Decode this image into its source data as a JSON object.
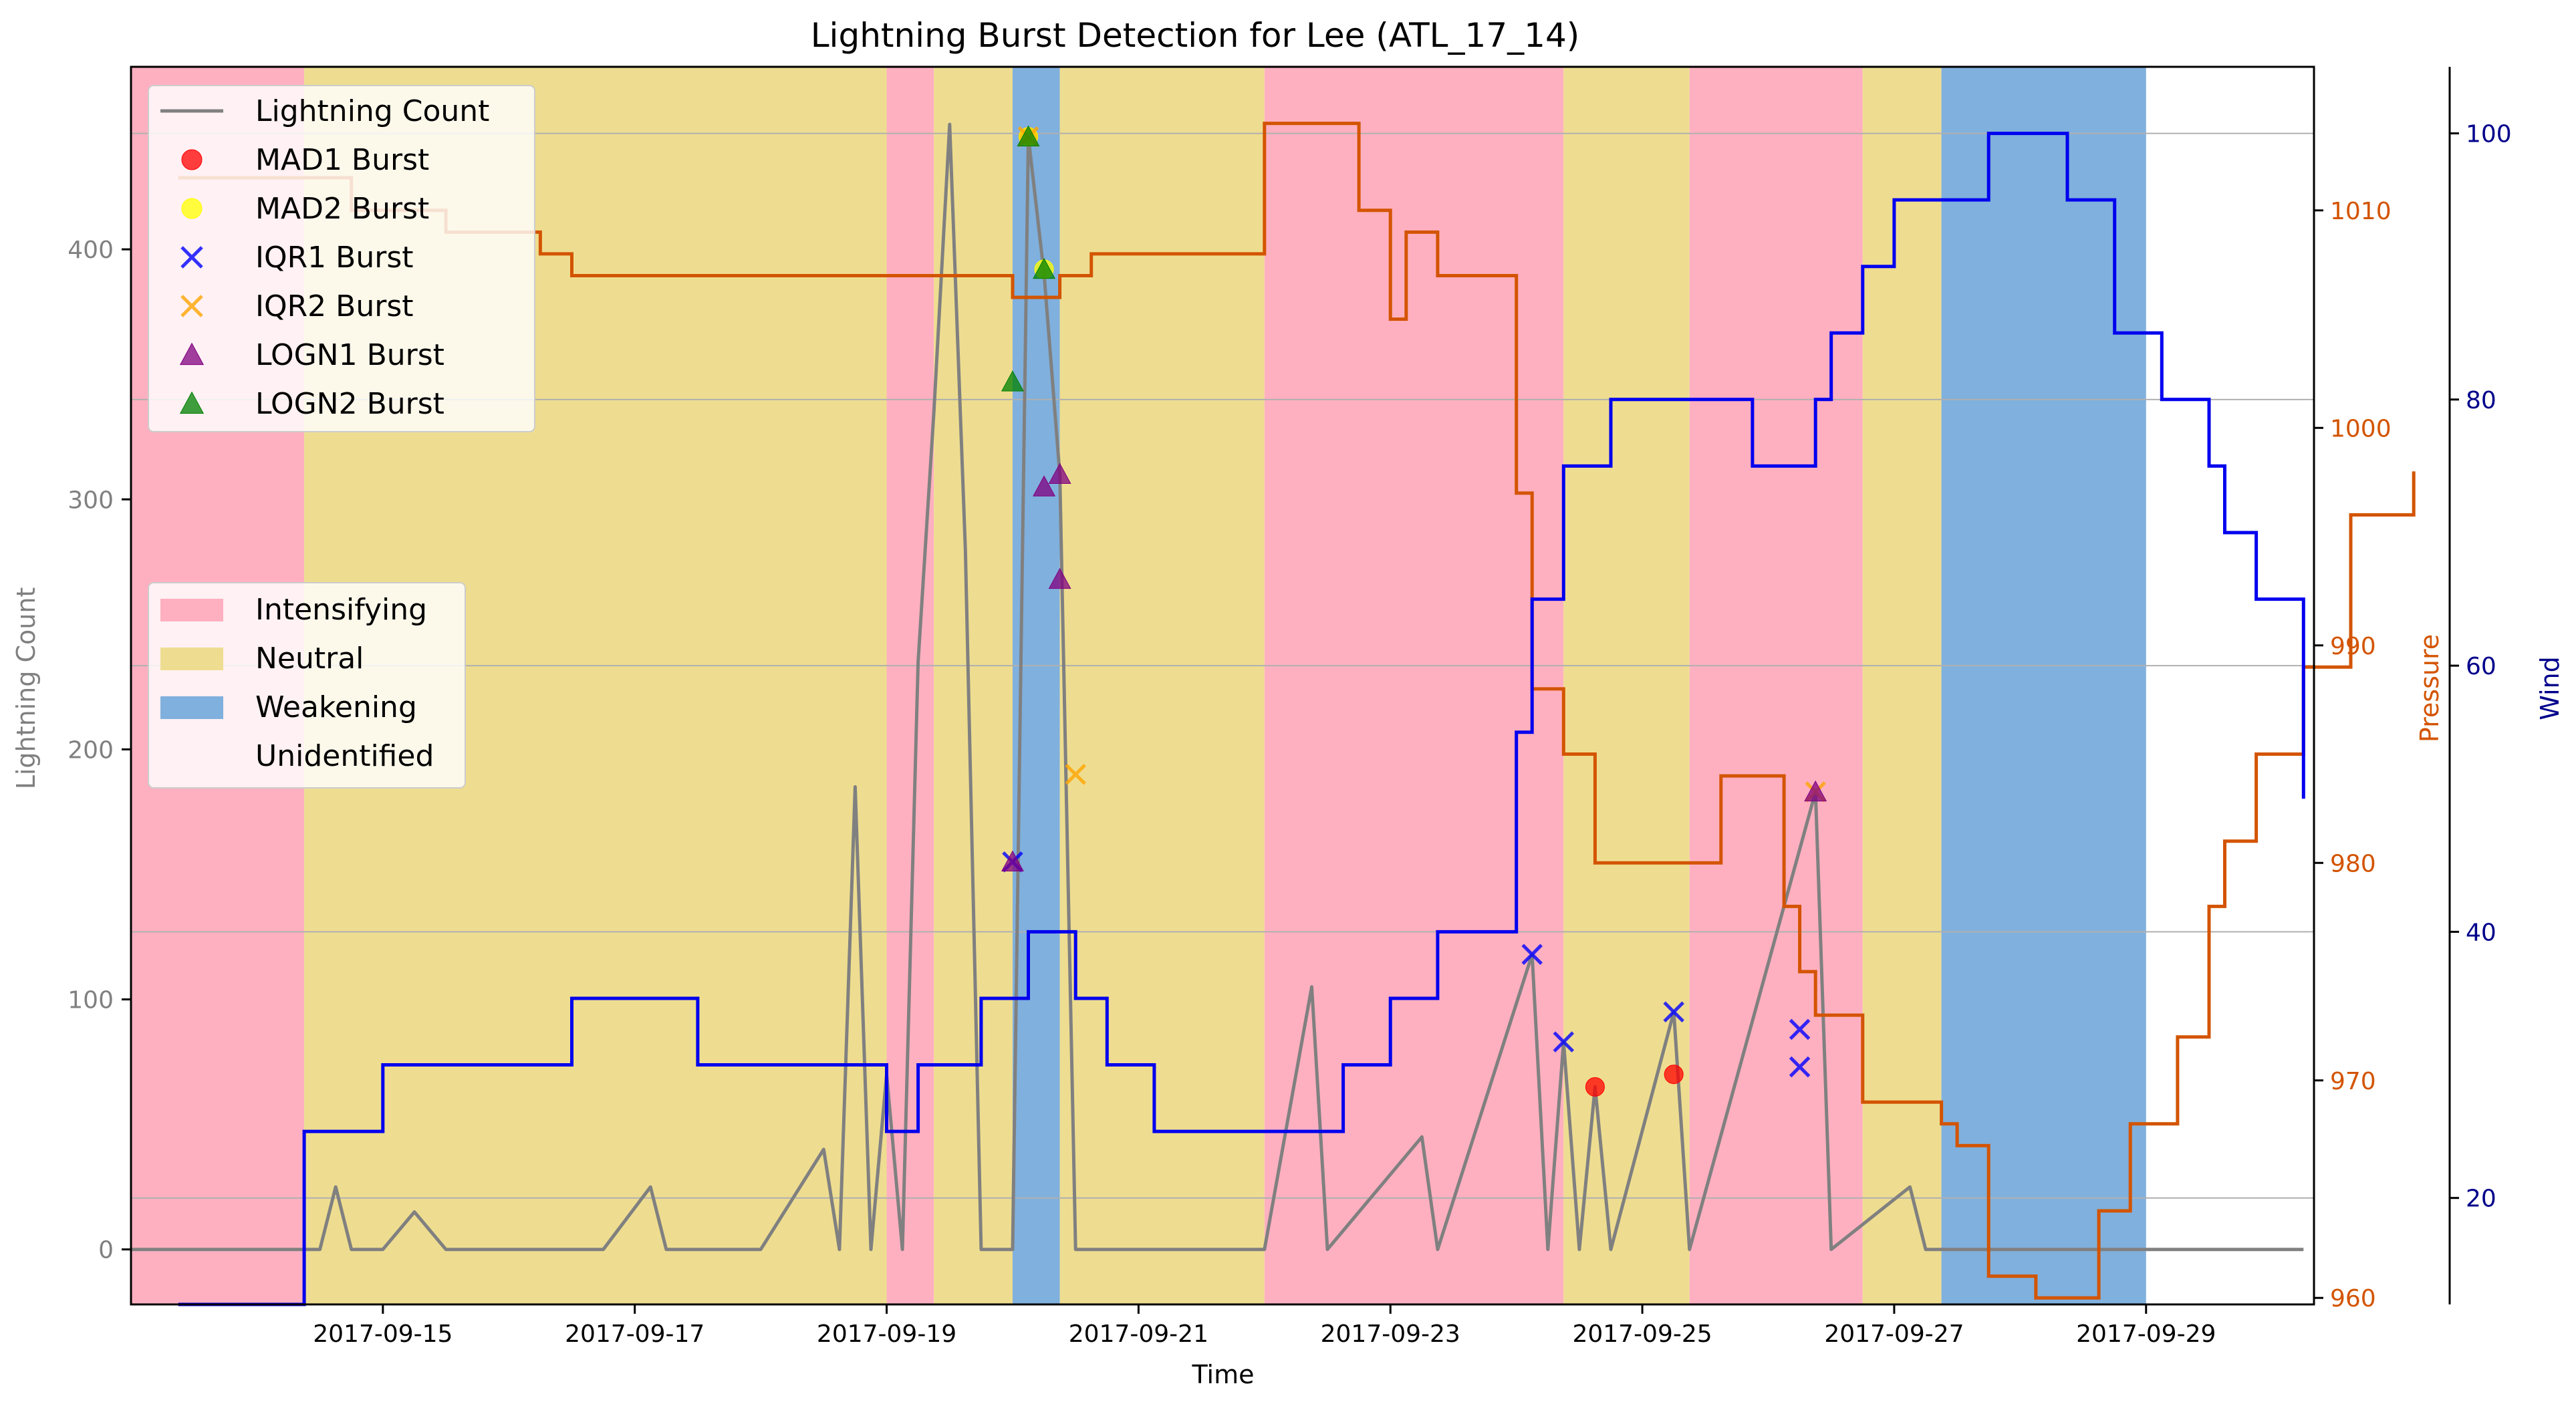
{
  "chart_data": {
    "type": "line",
    "title": "Lightning Burst Detection for Lee (ATL_17_14)",
    "xlabel": "Time",
    "ylabel": "Lightning Count",
    "ylabel_pressure": "Pressure",
    "ylabel_wind": "Wind",
    "x_range": [
      "2017-09-13 00:00",
      "2017-09-30 08:00"
    ],
    "ylim": [
      -22,
      473
    ],
    "ylim_pressure": [
      959.7,
      1016.6
    ],
    "ylim_wind": [
      12,
      105
    ],
    "x_ticks": [
      "2017-09-15",
      "2017-09-17",
      "2017-09-19",
      "2017-09-21",
      "2017-09-23",
      "2017-09-25",
      "2017-09-27",
      "2017-09-29"
    ],
    "y_ticks": [
      "0",
      "100",
      "200",
      "300",
      "400"
    ],
    "y_ticks_pressure": [
      "960",
      "970",
      "980",
      "990",
      "1000",
      "1010"
    ],
    "y_ticks_wind": [
      "20",
      "40",
      "60",
      "80",
      "100"
    ],
    "grid": "horizontal lines at wind ticks",
    "legend_series_position": "upper-left",
    "legend_phases_position": "center-left",
    "colors": {
      "lightning": "#808080",
      "pressure": "#d35400",
      "wind": "#0000ee",
      "intensifying": "#ffb0c0",
      "neutral": "#eedd90",
      "weakening": "#80b0dd",
      "mad1": "#ff0000",
      "mad2": "#ffff00",
      "iqr1": "#0000ff",
      "iqr2": "#ffa500",
      "logn1": "#800080",
      "logn2": "#008000",
      "axis_wind": "#00008b"
    },
    "phases": [
      {
        "start": "2017-09-13 00:00",
        "end": "2017-09-14 09:00",
        "phase": "Intensifying"
      },
      {
        "start": "2017-09-14 09:00",
        "end": "2017-09-19 00:00",
        "phase": "Neutral"
      },
      {
        "start": "2017-09-19 00:00",
        "end": "2017-09-19 09:00",
        "phase": "Intensifying"
      },
      {
        "start": "2017-09-19 09:00",
        "end": "2017-09-20 00:00",
        "phase": "Neutral"
      },
      {
        "start": "2017-09-20 00:00",
        "end": "2017-09-20 09:00",
        "phase": "Weakening"
      },
      {
        "start": "2017-09-20 09:00",
        "end": "2017-09-22 00:00",
        "phase": "Neutral"
      },
      {
        "start": "2017-09-22 00:00",
        "end": "2017-09-24 09:00",
        "phase": "Intensifying"
      },
      {
        "start": "2017-09-24 09:00",
        "end": "2017-09-25 09:00",
        "phase": "Neutral"
      },
      {
        "start": "2017-09-25 09:00",
        "end": "2017-09-26 18:00",
        "phase": "Intensifying"
      },
      {
        "start": "2017-09-26 18:00",
        "end": "2017-09-27 09:00",
        "phase": "Neutral"
      },
      {
        "start": "2017-09-27 09:00",
        "end": "2017-09-29 00:00",
        "phase": "Weakening"
      }
    ],
    "pressure_series": {
      "name": "Pressure",
      "points": [
        [
          "2017-09-13 09:00",
          1011.5
        ],
        [
          "2017-09-14 18:00",
          1011.5
        ],
        [
          "2017-09-14 18:00",
          1010
        ],
        [
          "2017-09-15 12:00",
          1010
        ],
        [
          "2017-09-15 12:00",
          1009
        ],
        [
          "2017-09-16 06:00",
          1009
        ],
        [
          "2017-09-16 06:00",
          1008
        ],
        [
          "2017-09-16 12:00",
          1008
        ],
        [
          "2017-09-16 12:00",
          1007
        ],
        [
          "2017-09-20 00:00",
          1007
        ],
        [
          "2017-09-20 00:00",
          1006
        ],
        [
          "2017-09-20 09:00",
          1006
        ],
        [
          "2017-09-20 09:00",
          1007
        ],
        [
          "2017-09-20 15:00",
          1007
        ],
        [
          "2017-09-20 15:00",
          1008
        ],
        [
          "2017-09-22 00:00",
          1008
        ],
        [
          "2017-09-22 00:00",
          1014
        ],
        [
          "2017-09-22 18:00",
          1014
        ],
        [
          "2017-09-22 18:00",
          1010
        ],
        [
          "2017-09-23 00:00",
          1010
        ],
        [
          "2017-09-23 00:00",
          1005
        ],
        [
          "2017-09-23 03:00",
          1005
        ],
        [
          "2017-09-23 03:00",
          1009
        ],
        [
          "2017-09-23 09:00",
          1009
        ],
        [
          "2017-09-23 09:00",
          1007
        ],
        [
          "2017-09-24 00:00",
          1007
        ],
        [
          "2017-09-24 00:00",
          997
        ],
        [
          "2017-09-24 03:00",
          997
        ],
        [
          "2017-09-24 03:00",
          988
        ],
        [
          "2017-09-24 09:00",
          988
        ],
        [
          "2017-09-24 09:00",
          985
        ],
        [
          "2017-09-24 15:00",
          985
        ],
        [
          "2017-09-24 15:00",
          980
        ],
        [
          "2017-09-25 15:00",
          980
        ],
        [
          "2017-09-25 15:00",
          984
        ],
        [
          "2017-09-26 03:00",
          984
        ],
        [
          "2017-09-26 03:00",
          978
        ],
        [
          "2017-09-26 06:00",
          978
        ],
        [
          "2017-09-26 06:00",
          975
        ],
        [
          "2017-09-26 09:00",
          975
        ],
        [
          "2017-09-26 09:00",
          973
        ],
        [
          "2017-09-26 18:00",
          973
        ],
        [
          "2017-09-26 18:00",
          969
        ],
        [
          "2017-09-27 09:00",
          969
        ],
        [
          "2017-09-27 09:00",
          968
        ],
        [
          "2017-09-27 12:00",
          968
        ],
        [
          "2017-09-27 12:00",
          967
        ],
        [
          "2017-09-27 18:00",
          967
        ],
        [
          "2017-09-27 18:00",
          961
        ],
        [
          "2017-09-28 03:00",
          961
        ],
        [
          "2017-09-28 03:00",
          960
        ],
        [
          "2017-09-28 15:00",
          960
        ],
        [
          "2017-09-28 15:00",
          964
        ],
        [
          "2017-09-28 21:00",
          964
        ],
        [
          "2017-09-28 21:00",
          968
        ],
        [
          "2017-09-29 06:00",
          968
        ],
        [
          "2017-09-29 06:00",
          972
        ],
        [
          "2017-09-29 12:00",
          972
        ],
        [
          "2017-09-29 12:00",
          978
        ],
        [
          "2017-09-29 15:00",
          978
        ],
        [
          "2017-09-29 15:00",
          981
        ],
        [
          "2017-09-29 21:00",
          981
        ],
        [
          "2017-09-29 21:00",
          985
        ],
        [
          "2017-09-30 06:00",
          985
        ],
        [
          "2017-09-30 06:00",
          989
        ],
        [
          "2017-09-30 15:00",
          989
        ],
        [
          "2017-09-30 15:00",
          996
        ],
        [
          "2017-09-31 03:00",
          996
        ],
        [
          "2017-09-31 03:00",
          998
        ]
      ]
    },
    "wind_series": {
      "name": "Wind",
      "points": [
        [
          "2017-09-13 09:00",
          12
        ],
        [
          "2017-09-14 09:00",
          12
        ],
        [
          "2017-09-14 09:00",
          25
        ],
        [
          "2017-09-15 00:00",
          25
        ],
        [
          "2017-09-15 00:00",
          30
        ],
        [
          "2017-09-16 12:00",
          30
        ],
        [
          "2017-09-16 12:00",
          35
        ],
        [
          "2017-09-17 12:00",
          35
        ],
        [
          "2017-09-17 12:00",
          30
        ],
        [
          "2017-09-19 00:00",
          30
        ],
        [
          "2017-09-19 00:00",
          25
        ],
        [
          "2017-09-19 06:00",
          25
        ],
        [
          "2017-09-19 06:00",
          30
        ],
        [
          "2017-09-19 18:00",
          30
        ],
        [
          "2017-09-19 18:00",
          35
        ],
        [
          "2017-09-20 03:00",
          35
        ],
        [
          "2017-09-20 03:00",
          40
        ],
        [
          "2017-09-20 12:00",
          40
        ],
        [
          "2017-09-20 12:00",
          35
        ],
        [
          "2017-09-20 18:00",
          35
        ],
        [
          "2017-09-20 18:00",
          30
        ],
        [
          "2017-09-21 03:00",
          30
        ],
        [
          "2017-09-21 03:00",
          25
        ],
        [
          "2017-09-22 15:00",
          25
        ],
        [
          "2017-09-22 15:00",
          30
        ],
        [
          "2017-09-23 00:00",
          30
        ],
        [
          "2017-09-23 00:00",
          35
        ],
        [
          "2017-09-23 09:00",
          35
        ],
        [
          "2017-09-23 09:00",
          40
        ],
        [
          "2017-09-24 00:00",
          40
        ],
        [
          "2017-09-24 00:00",
          55
        ],
        [
          "2017-09-24 03:00",
          55
        ],
        [
          "2017-09-24 03:00",
          65
        ],
        [
          "2017-09-24 09:00",
          65
        ],
        [
          "2017-09-24 09:00",
          75
        ],
        [
          "2017-09-24 18:00",
          75
        ],
        [
          "2017-09-24 18:00",
          80
        ],
        [
          "2017-09-25 21:00",
          80
        ],
        [
          "2017-09-25 21:00",
          75
        ],
        [
          "2017-09-26 09:00",
          75
        ],
        [
          "2017-09-26 09:00",
          80
        ],
        [
          "2017-09-26 12:00",
          80
        ],
        [
          "2017-09-26 12:00",
          85
        ],
        [
          "2017-09-26 18:00",
          85
        ],
        [
          "2017-09-26 18:00",
          90
        ],
        [
          "2017-09-27 00:00",
          90
        ],
        [
          "2017-09-27 00:00",
          95
        ],
        [
          "2017-09-27 18:00",
          95
        ],
        [
          "2017-09-27 18:00",
          100
        ],
        [
          "2017-09-28 09:00",
          100
        ],
        [
          "2017-09-28 09:00",
          95
        ],
        [
          "2017-09-28 18:00",
          95
        ],
        [
          "2017-09-28 18:00",
          85
        ],
        [
          "2017-09-29 03:00",
          85
        ],
        [
          "2017-09-29 03:00",
          80
        ],
        [
          "2017-09-29 12:00",
          80
        ],
        [
          "2017-09-29 12:00",
          75
        ],
        [
          "2017-09-29 15:00",
          75
        ],
        [
          "2017-09-29 15:00",
          70
        ],
        [
          "2017-09-29 21:00",
          70
        ],
        [
          "2017-09-29 21:00",
          65
        ],
        [
          "2017-09-30 06:00",
          65
        ],
        [
          "2017-09-30 06:00",
          50
        ]
      ]
    },
    "lightning_series": {
      "name": "Lightning Count",
      "points": [
        [
          "2017-09-13 00:00",
          0
        ],
        [
          "2017-09-14 12:00",
          0
        ],
        [
          "2017-09-14 15:00",
          25
        ],
        [
          "2017-09-14 18:00",
          0
        ],
        [
          "2017-09-15 00:00",
          0
        ],
        [
          "2017-09-15 06:00",
          15
        ],
        [
          "2017-09-15 12:00",
          0
        ],
        [
          "2017-09-16 18:00",
          0
        ],
        [
          "2017-09-17 03:00",
          25
        ],
        [
          "2017-09-17 06:00",
          0
        ],
        [
          "2017-09-18 00:00",
          0
        ],
        [
          "2017-09-18 12:00",
          40
        ],
        [
          "2017-09-18 15:00",
          0
        ],
        [
          "2017-09-18 18:00",
          185
        ],
        [
          "2017-09-18 21:00",
          0
        ],
        [
          "2017-09-19 00:00",
          70
        ],
        [
          "2017-09-19 03:00",
          0
        ],
        [
          "2017-09-19 06:00",
          235
        ],
        [
          "2017-09-19 09:00",
          335
        ],
        [
          "2017-09-19 12:00",
          450
        ],
        [
          "2017-09-19 15:00",
          280
        ],
        [
          "2017-09-19 18:00",
          0
        ],
        [
          "2017-09-20 00:00",
          0
        ],
        [
          "2017-09-20 03:00",
          445
        ],
        [
          "2017-09-20 06:00",
          390
        ],
        [
          "2017-09-20 09:00",
          310
        ],
        [
          "2017-09-20 12:00",
          0
        ],
        [
          "2017-09-22 00:00",
          0
        ],
        [
          "2017-09-22 09:00",
          105
        ],
        [
          "2017-09-22 12:00",
          0
        ],
        [
          "2017-09-23 06:00",
          45
        ],
        [
          "2017-09-23 09:00",
          0
        ],
        [
          "2017-09-24 03:00",
          118
        ],
        [
          "2017-09-24 06:00",
          0
        ],
        [
          "2017-09-24 09:00",
          83
        ],
        [
          "2017-09-24 12:00",
          0
        ],
        [
          "2017-09-24 15:00",
          65
        ],
        [
          "2017-09-24 18:00",
          0
        ],
        [
          "2017-09-25 06:00",
          95
        ],
        [
          "2017-09-25 09:00",
          0
        ],
        [
          "2017-09-26 09:00",
          183
        ],
        [
          "2017-09-26 12:00",
          0
        ],
        [
          "2017-09-27 03:00",
          25
        ],
        [
          "2017-09-27 06:00",
          0
        ],
        [
          "2017-09-30 06:00",
          0
        ]
      ]
    },
    "bursts": {
      "mad1": [
        [
          "2017-09-20 03:00",
          445
        ],
        [
          "2017-09-24 15:00",
          65
        ],
        [
          "2017-09-25 06:00",
          70
        ]
      ],
      "mad2": [
        [
          "2017-09-20 03:00",
          445
        ],
        [
          "2017-09-20 06:00",
          392
        ]
      ],
      "iqr1": [
        [
          "2017-09-20 00:00",
          155
        ],
        [
          "2017-09-24 03:00",
          118
        ],
        [
          "2017-09-24 09:00",
          83
        ],
        [
          "2017-09-25 06:00",
          95
        ],
        [
          "2017-09-26 06:00",
          88
        ],
        [
          "2017-09-26 06:00",
          73
        ]
      ],
      "iqr2": [
        [
          "2017-09-20 03:00",
          445
        ],
        [
          "2017-09-20 12:00",
          190
        ],
        [
          "2017-09-26 09:00",
          183
        ]
      ],
      "logn1": [
        [
          "2017-09-20 00:00",
          155
        ],
        [
          "2017-09-20 06:00",
          305
        ],
        [
          "2017-09-20 09:00",
          310
        ],
        [
          "2017-09-20 09:00",
          268
        ],
        [
          "2017-09-26 09:00",
          183
        ]
      ],
      "logn2": [
        [
          "2017-09-20 00:00",
          347
        ],
        [
          "2017-09-20 03:00",
          445
        ],
        [
          "2017-09-20 06:00",
          392
        ]
      ]
    },
    "legend_series": [
      {
        "name": "Lightning Count",
        "marker": "line",
        "color_key": "lightning"
      },
      {
        "name": "MAD1 Burst",
        "marker": "circle",
        "color_key": "mad1"
      },
      {
        "name": "MAD2 Burst",
        "marker": "circle",
        "color_key": "mad2"
      },
      {
        "name": "IQR1 Burst",
        "marker": "x",
        "color_key": "iqr1"
      },
      {
        "name": "IQR2 Burst",
        "marker": "x",
        "color_key": "iqr2"
      },
      {
        "name": "LOGN1 Burst",
        "marker": "triangle",
        "color_key": "logn1"
      },
      {
        "name": "LOGN2 Burst",
        "marker": "triangle",
        "color_key": "logn2"
      }
    ],
    "legend_phases": [
      {
        "name": "Intensifying",
        "color_key": "intensifying"
      },
      {
        "name": "Neutral",
        "color_key": "neutral"
      },
      {
        "name": "Weakening",
        "color_key": "weakening"
      },
      {
        "name": "Unidentified",
        "color_key": "none"
      }
    ]
  }
}
